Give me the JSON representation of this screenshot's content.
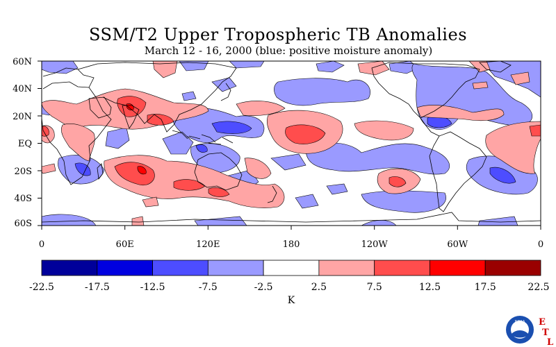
{
  "title": "SSM/T2 Upper Tropospheric TB Anomalies",
  "subtitle": "March 12 - 16, 2000 (blue: positive moisture anomaly)",
  "map": {
    "lat_labels": [
      "60N",
      "40N",
      "20N",
      "EQ",
      "20S",
      "40S",
      "60S"
    ],
    "lon_labels": [
      "0",
      "60E",
      "120E",
      "180",
      "120W",
      "60W",
      "0"
    ]
  },
  "colorbar": {
    "unit": "K",
    "ticks": [
      "-22.5",
      "-17.5",
      "-12.5",
      "-7.5",
      "-2.5",
      "2.5",
      "7.5",
      "12.5",
      "17.5",
      "22.5"
    ],
    "colors": [
      "#00009a",
      "#0000e0",
      "#4d4dff",
      "#9a9aff",
      "#ffffff",
      "#ffa5a5",
      "#ff4d4d",
      "#ff0000",
      "#9a0000"
    ]
  },
  "colors": {
    "pos_light": "#ffa5a5",
    "pos_mid": "#ff4d4d",
    "pos_dark": "#ff0000",
    "neg_light": "#9a9aff",
    "neg_mid": "#4d4dff",
    "neg_dark": "#0000e0"
  },
  "logo": {
    "org": "NOAA",
    "letters": [
      "E",
      "T",
      "L"
    ]
  }
}
